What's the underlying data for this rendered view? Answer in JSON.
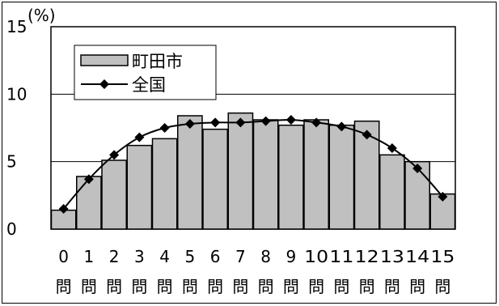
{
  "chart_data": {
    "type": "bar",
    "y_unit_label": "(%)",
    "ylim": [
      0,
      15
    ],
    "y_ticks": [
      0,
      5,
      10,
      15
    ],
    "grid": "horizontal at 5 and 10",
    "legend_placement": "top-left",
    "categories": [
      "0",
      "1",
      "2",
      "3",
      "4",
      "5",
      "6",
      "7",
      "8",
      "9",
      "10",
      "11",
      "12",
      "13",
      "14",
      "15"
    ],
    "category_suffix": "問",
    "series": [
      {
        "name": "町田市",
        "kind": "bar",
        "color": "#c0c0c0",
        "values": [
          1.4,
          3.9,
          5.1,
          6.2,
          6.7,
          8.4,
          7.4,
          8.6,
          8.1,
          7.7,
          8.1,
          7.7,
          8.0,
          5.5,
          5.0,
          2.6
        ]
      },
      {
        "name": "全国",
        "kind": "line",
        "color": "#000000",
        "marker": "diamond",
        "values": [
          1.5,
          3.7,
          5.5,
          6.8,
          7.5,
          7.8,
          7.9,
          7.9,
          8.0,
          8.1,
          7.9,
          7.6,
          7.0,
          6.0,
          4.5,
          2.4
        ]
      }
    ]
  }
}
